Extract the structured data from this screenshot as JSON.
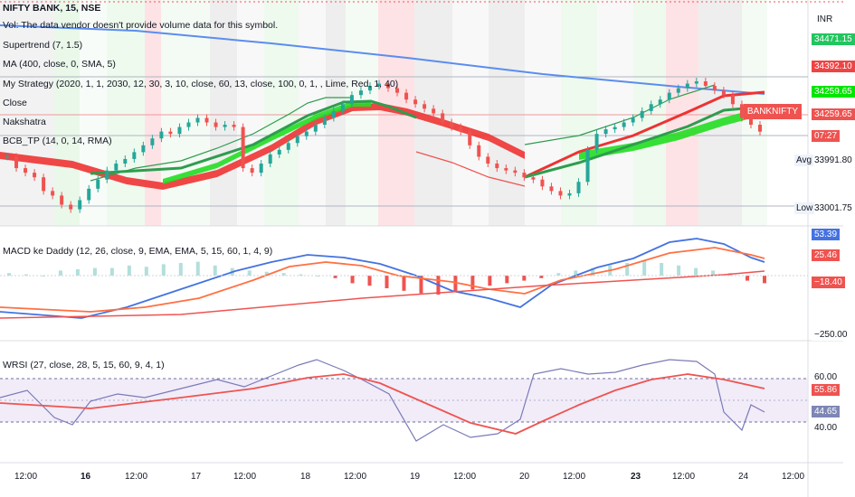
{
  "header": {
    "symbol": "NIFTY BANK, 15, NSE",
    "currency": "INR"
  },
  "indicators": [
    "Vol: The data vendor doesn't provide volume data for this symbol.",
    "Supertrend (7, 1.5)",
    "MA (400, close, 0, SMA, 5)",
    "My Strategy (2020, 1, 1, 2030, 12, 30, 3, 10, close, 60, 13, close, 100, 0, 1, , Lime, Red, 1, 40)",
    "Close",
    "Nakshatra",
    "BCB_TP (14, 0, 14, RMA)"
  ],
  "sub_indicators": {
    "macd": "MACD ke Daddy (12, 26, close, 9, EMA, EMA, 5, 15, 60, 1, 4, 9)",
    "wrsi": "WRSI (27, close, 28, 5, 15, 60, 9, 4, 1)"
  },
  "price_axis": {
    "labels": [
      {
        "text": "34471.15",
        "bg": "#22c55e"
      },
      {
        "text": "34392.10",
        "bg": "#ef4444"
      },
      {
        "text": "34259.65",
        "bg": "#00e600"
      },
      {
        "text": "34259.65",
        "bg": "#ef5350"
      },
      {
        "text": "07:27",
        "bg": "#ef5350"
      },
      {
        "text": "33991.80",
        "bg": "#ffffff"
      },
      {
        "text": "33001.75",
        "bg": "#ffffff"
      }
    ],
    "symbol_tag": "BANKNIFTY",
    "avg_label": "Avg",
    "low_label": "Low"
  },
  "macd_axis": {
    "labels": [
      {
        "text": "53.39",
        "bg": "#4472e0"
      },
      {
        "text": "25.46",
        "bg": "#ef5350"
      },
      {
        "text": "−18.40",
        "bg": "#ef5350"
      },
      {
        "text": "−250.00",
        "bg": "#ffffff"
      }
    ]
  },
  "wrsi_axis": {
    "labels": [
      {
        "text": "60.00",
        "bg": "#ffffff"
      },
      {
        "text": "55.86",
        "bg": "#ef5350"
      },
      {
        "text": "44.65",
        "bg": "#7e86b6"
      },
      {
        "text": "40.00",
        "bg": "#ffffff"
      }
    ]
  },
  "time_axis": {
    "labels": [
      {
        "text": "12:00",
        "bold": false
      },
      {
        "text": "16",
        "bold": true
      },
      {
        "text": "12:00",
        "bold": false
      },
      {
        "text": "17",
        "bold": false
      },
      {
        "text": "12:00",
        "bold": false
      },
      {
        "text": "18",
        "bold": false
      },
      {
        "text": "12:00",
        "bold": false
      },
      {
        "text": "19",
        "bold": false
      },
      {
        "text": "12:00",
        "bold": false
      },
      {
        "text": "20",
        "bold": false
      },
      {
        "text": "12:00",
        "bold": false
      },
      {
        "text": "23",
        "bold": true
      },
      {
        "text": "12:00",
        "bold": false
      },
      {
        "text": "24",
        "bold": false
      },
      {
        "text": "12:00",
        "bold": false
      }
    ]
  },
  "colors": {
    "up": "#26a69a",
    "down": "#ef5350",
    "ma_blue": "#5b8def",
    "ribbon_green": "#22dd22",
    "ribbon_red": "#ee3333",
    "supertrend_green": "#2e9d4e",
    "macd_blue": "#4472e0",
    "macd_orange": "#ff7043",
    "wrsi_purple": "#7a7ab8",
    "wrsi_red": "#ef5350"
  },
  "chart_data": {
    "type": "candlestick",
    "symbol": "NIFTY BANK",
    "interval": "15",
    "exchange": "NSE",
    "price_levels": [
      34471.15,
      34392.1,
      34259.65,
      33991.8,
      33001.75
    ],
    "close": [
      34150,
      34100,
      34080,
      34060,
      34000,
      33980,
      33940,
      33920,
      33960,
      34010,
      34050,
      34090,
      34120,
      34140,
      34170,
      34200,
      34230,
      34260,
      34250,
      34280,
      34300,
      34320,
      34300,
      34280,
      34290,
      34280,
      34100,
      34080,
      34120,
      34160,
      34180,
      34210,
      34240,
      34260,
      34290,
      34320,
      34350,
      34380,
      34420,
      34440,
      34460,
      34470,
      34450,
      34430,
      34400,
      34380,
      34360,
      34340,
      34300,
      34280,
      34260,
      34200,
      34150,
      34120,
      34100,
      34090,
      34080,
      34060,
      34050,
      34020,
      34000,
      33980,
      33990,
      34040,
      34180,
      34250,
      34270,
      34280,
      34300,
      34320,
      34350,
      34380,
      34400,
      34430,
      34450,
      34470,
      34480,
      34460,
      34440,
      34420,
      34380,
      34320,
      34290,
      34259.65
    ],
    "macd": {
      "macd_last": 53.39,
      "signal_last": 25.46,
      "hist_last": -18.4,
      "range_low": -250.0
    },
    "wrsi": {
      "upper": 60.0,
      "lower": 40.0,
      "wrsi_last": 44.65,
      "signal_last": 55.86
    }
  }
}
